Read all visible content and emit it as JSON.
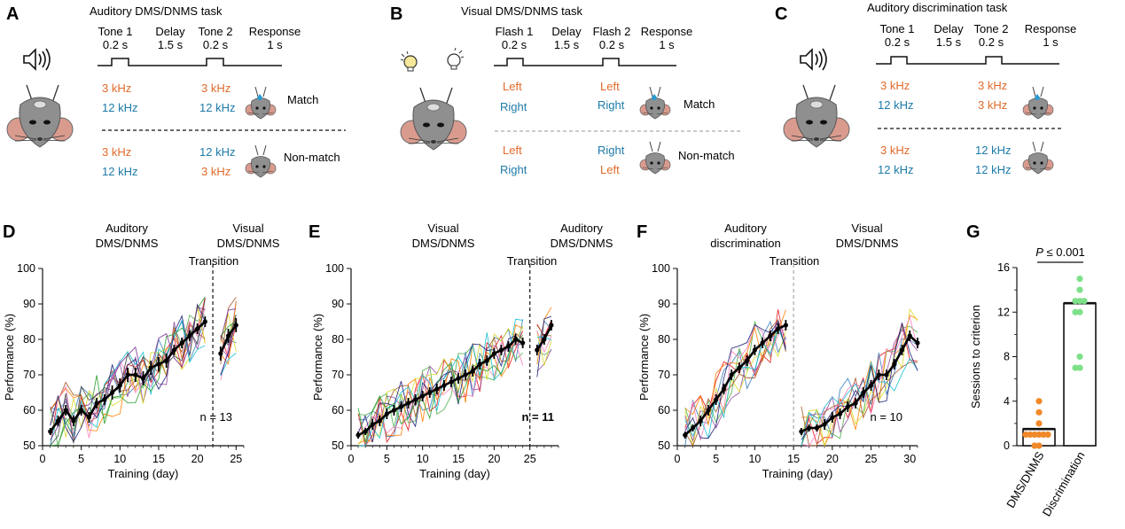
{
  "colors": {
    "orange": "#e06a2b",
    "blue": "#1e7aa8",
    "gray_line": "#555555",
    "mean": "#000000",
    "green_dot": "#7ee08a",
    "orange_dot": "#f0892a"
  },
  "panel_a": {
    "label": "A",
    "title": "Auditory DMS/DNMS task",
    "timeline": [
      "Tone 1\n0.2 s",
      "Delay\n1.5 s",
      "Tone 2\n0.2 s",
      "Response\n1 s"
    ],
    "match_rows": [
      [
        "3 kHz",
        "3 kHz"
      ],
      [
        "12 kHz",
        "12 kHz"
      ]
    ],
    "match_label": "Match",
    "nonmatch_rows": [
      [
        "3 kHz",
        "12 kHz"
      ],
      [
        "12 kHz",
        "3 kHz"
      ]
    ],
    "nonmatch_label": "Non-match"
  },
  "panel_b": {
    "label": "B",
    "title": "Visual DMS/DNMS task",
    "timeline": [
      "Flash 1\n0.2 s",
      "Delay\n1.5 s",
      "Flash 2\n0.2 s",
      "Response\n1 s"
    ],
    "match_rows": [
      [
        "Left",
        "Left"
      ],
      [
        "Right",
        "Right"
      ]
    ],
    "match_label": "Match",
    "nonmatch_rows": [
      [
        "Left",
        "Right"
      ],
      [
        "Right",
        "Left"
      ]
    ],
    "nonmatch_label": "Non-match"
  },
  "panel_c": {
    "label": "C",
    "title": "Auditory discrimination task",
    "timeline": [
      "Tone 1\n0.2 s",
      "Delay\n1.5 s",
      "Tone 2\n0.2 s",
      "Response\n1 s"
    ],
    "match_rows": [
      [
        "3 kHz",
        "3 kHz"
      ],
      [
        "12 kHz",
        "3 kHz"
      ]
    ],
    "nonmatch_rows": [
      [
        "3 kHz",
        "12 kHz"
      ],
      [
        "12 kHz",
        "12 kHz"
      ]
    ]
  },
  "chart_data": [
    {
      "id": "D",
      "type": "line",
      "label": "D",
      "phase_labels": [
        "Auditory\nDMS/DNMS",
        "Visual\nDMS/DNMS"
      ],
      "transition_label": "Transition",
      "xlabel": "Training (day)",
      "ylabel": "Performance (%)",
      "xlim": [
        0,
        26
      ],
      "ylim": [
        50,
        100
      ],
      "xticks": [
        0,
        5,
        10,
        15,
        20,
        25
      ],
      "yticks": [
        50,
        60,
        70,
        80,
        90,
        100
      ],
      "transition_x": 22,
      "n_label": "n = 13",
      "n_bold": false,
      "segments": [
        {
          "x": [
            1,
            2,
            3,
            4,
            5,
            6,
            7,
            8,
            9,
            10,
            11,
            12,
            13,
            14,
            15,
            16,
            17,
            18,
            19,
            20,
            21
          ],
          "mean": [
            54,
            57,
            60,
            57,
            60,
            58,
            62,
            63,
            65,
            67,
            70,
            70,
            69,
            72,
            73,
            74,
            77,
            79,
            81,
            83,
            85
          ],
          "sem": [
            1,
            1.5,
            1.5,
            1.5,
            1.5,
            1.5,
            1.5,
            1.5,
            2,
            2,
            2,
            2,
            2,
            2,
            2,
            2,
            1.5,
            1.5,
            1.5,
            1.5,
            1.5
          ]
        },
        {
          "x": [
            23,
            24,
            25
          ],
          "mean": [
            76,
            81,
            84
          ],
          "sem": [
            2,
            2,
            2
          ]
        }
      ]
    },
    {
      "id": "E",
      "type": "line",
      "label": "E",
      "phase_labels": [
        "Visual\nDMS/DNMS",
        "Auditory\nDMS/DNMS"
      ],
      "transition_label": "Transition",
      "xlabel": "Training (day)",
      "ylabel": "Performance (%)",
      "xlim": [
        0,
        29
      ],
      "ylim": [
        50,
        100
      ],
      "xticks": [
        0,
        5,
        10,
        15,
        20,
        25
      ],
      "yticks": [
        50,
        60,
        70,
        80,
        90,
        100
      ],
      "transition_x": 25,
      "n_label": "n = 11",
      "n_bold": true,
      "segments": [
        {
          "x": [
            1,
            2,
            3,
            4,
            5,
            6,
            7,
            8,
            9,
            10,
            11,
            12,
            13,
            14,
            15,
            16,
            17,
            18,
            19,
            20,
            21,
            22,
            23,
            24
          ],
          "mean": [
            53,
            54,
            56,
            57,
            59,
            60,
            61,
            62,
            63,
            64,
            65,
            66,
            67,
            68,
            69,
            70,
            71,
            73,
            74,
            76,
            77,
            78,
            80,
            79
          ],
          "sem": [
            1,
            1,
            1.5,
            1.5,
            1.5,
            1.5,
            1.5,
            1.5,
            1.5,
            1.5,
            1.5,
            1.5,
            1.5,
            1.5,
            1.5,
            1.5,
            1.5,
            1.5,
            1.5,
            1.5,
            1.5,
            1.5,
            1.5,
            1.5
          ]
        },
        {
          "x": [
            26,
            27,
            28
          ],
          "mean": [
            77,
            80,
            84
          ],
          "sem": [
            1.5,
            1.5,
            1.5
          ]
        }
      ]
    },
    {
      "id": "F",
      "type": "line",
      "label": "F",
      "phase_labels": [
        "Auditory\ndiscrimination",
        "Visual\nDMS/DNMS"
      ],
      "transition_label": "Transition",
      "xlabel": "Training (day)",
      "ylabel": "Performance (%)",
      "xlim": [
        0,
        31
      ],
      "ylim": [
        50,
        100
      ],
      "xticks": [
        0,
        5,
        10,
        15,
        20,
        25,
        30
      ],
      "yticks": [
        50,
        60,
        70,
        80,
        90,
        100
      ],
      "transition_x": 15,
      "n_label": "n = 10",
      "n_bold": false,
      "segments": [
        {
          "x": [
            1,
            2,
            3,
            4,
            5,
            6,
            7,
            8,
            9,
            10,
            11,
            12,
            13,
            14
          ],
          "mean": [
            53,
            55,
            57,
            60,
            63,
            66,
            70,
            72,
            74,
            77,
            79,
            81,
            83,
            84
          ],
          "sem": [
            1,
            1,
            1.5,
            1.5,
            1.5,
            1.5,
            1.5,
            1.5,
            1.5,
            1.5,
            1.5,
            1.5,
            1.5,
            1.5
          ]
        },
        {
          "x": [
            16,
            17,
            18,
            19,
            20,
            21,
            22,
            23,
            24,
            25,
            26,
            27,
            28,
            29,
            30,
            31
          ],
          "mean": [
            54,
            55,
            55,
            56,
            58,
            59,
            61,
            62,
            65,
            67,
            70,
            70,
            73,
            77,
            81,
            79
          ],
          "sem": [
            1,
            1,
            1,
            1.5,
            1.5,
            1.5,
            1.5,
            1.5,
            1.5,
            1.5,
            1.5,
            1.5,
            1.5,
            1.5,
            1.5,
            1.5
          ]
        }
      ]
    },
    {
      "id": "G",
      "type": "bar",
      "label": "G",
      "categories": [
        "DMS/DNMS",
        "Discrimination"
      ],
      "values": [
        1.5,
        12.8
      ],
      "points": [
        [
          0,
          0,
          1,
          1,
          1,
          1,
          1,
          1,
          2,
          3,
          4
        ],
        [
          7,
          7,
          8,
          12,
          12,
          13,
          13,
          13,
          14,
          15
        ]
      ],
      "ylabel": "Sessions to criterion",
      "ylim": [
        0,
        16
      ],
      "yticks": [
        0,
        4,
        8,
        12,
        16
      ],
      "annotation": "P ≤ 0.001"
    }
  ]
}
